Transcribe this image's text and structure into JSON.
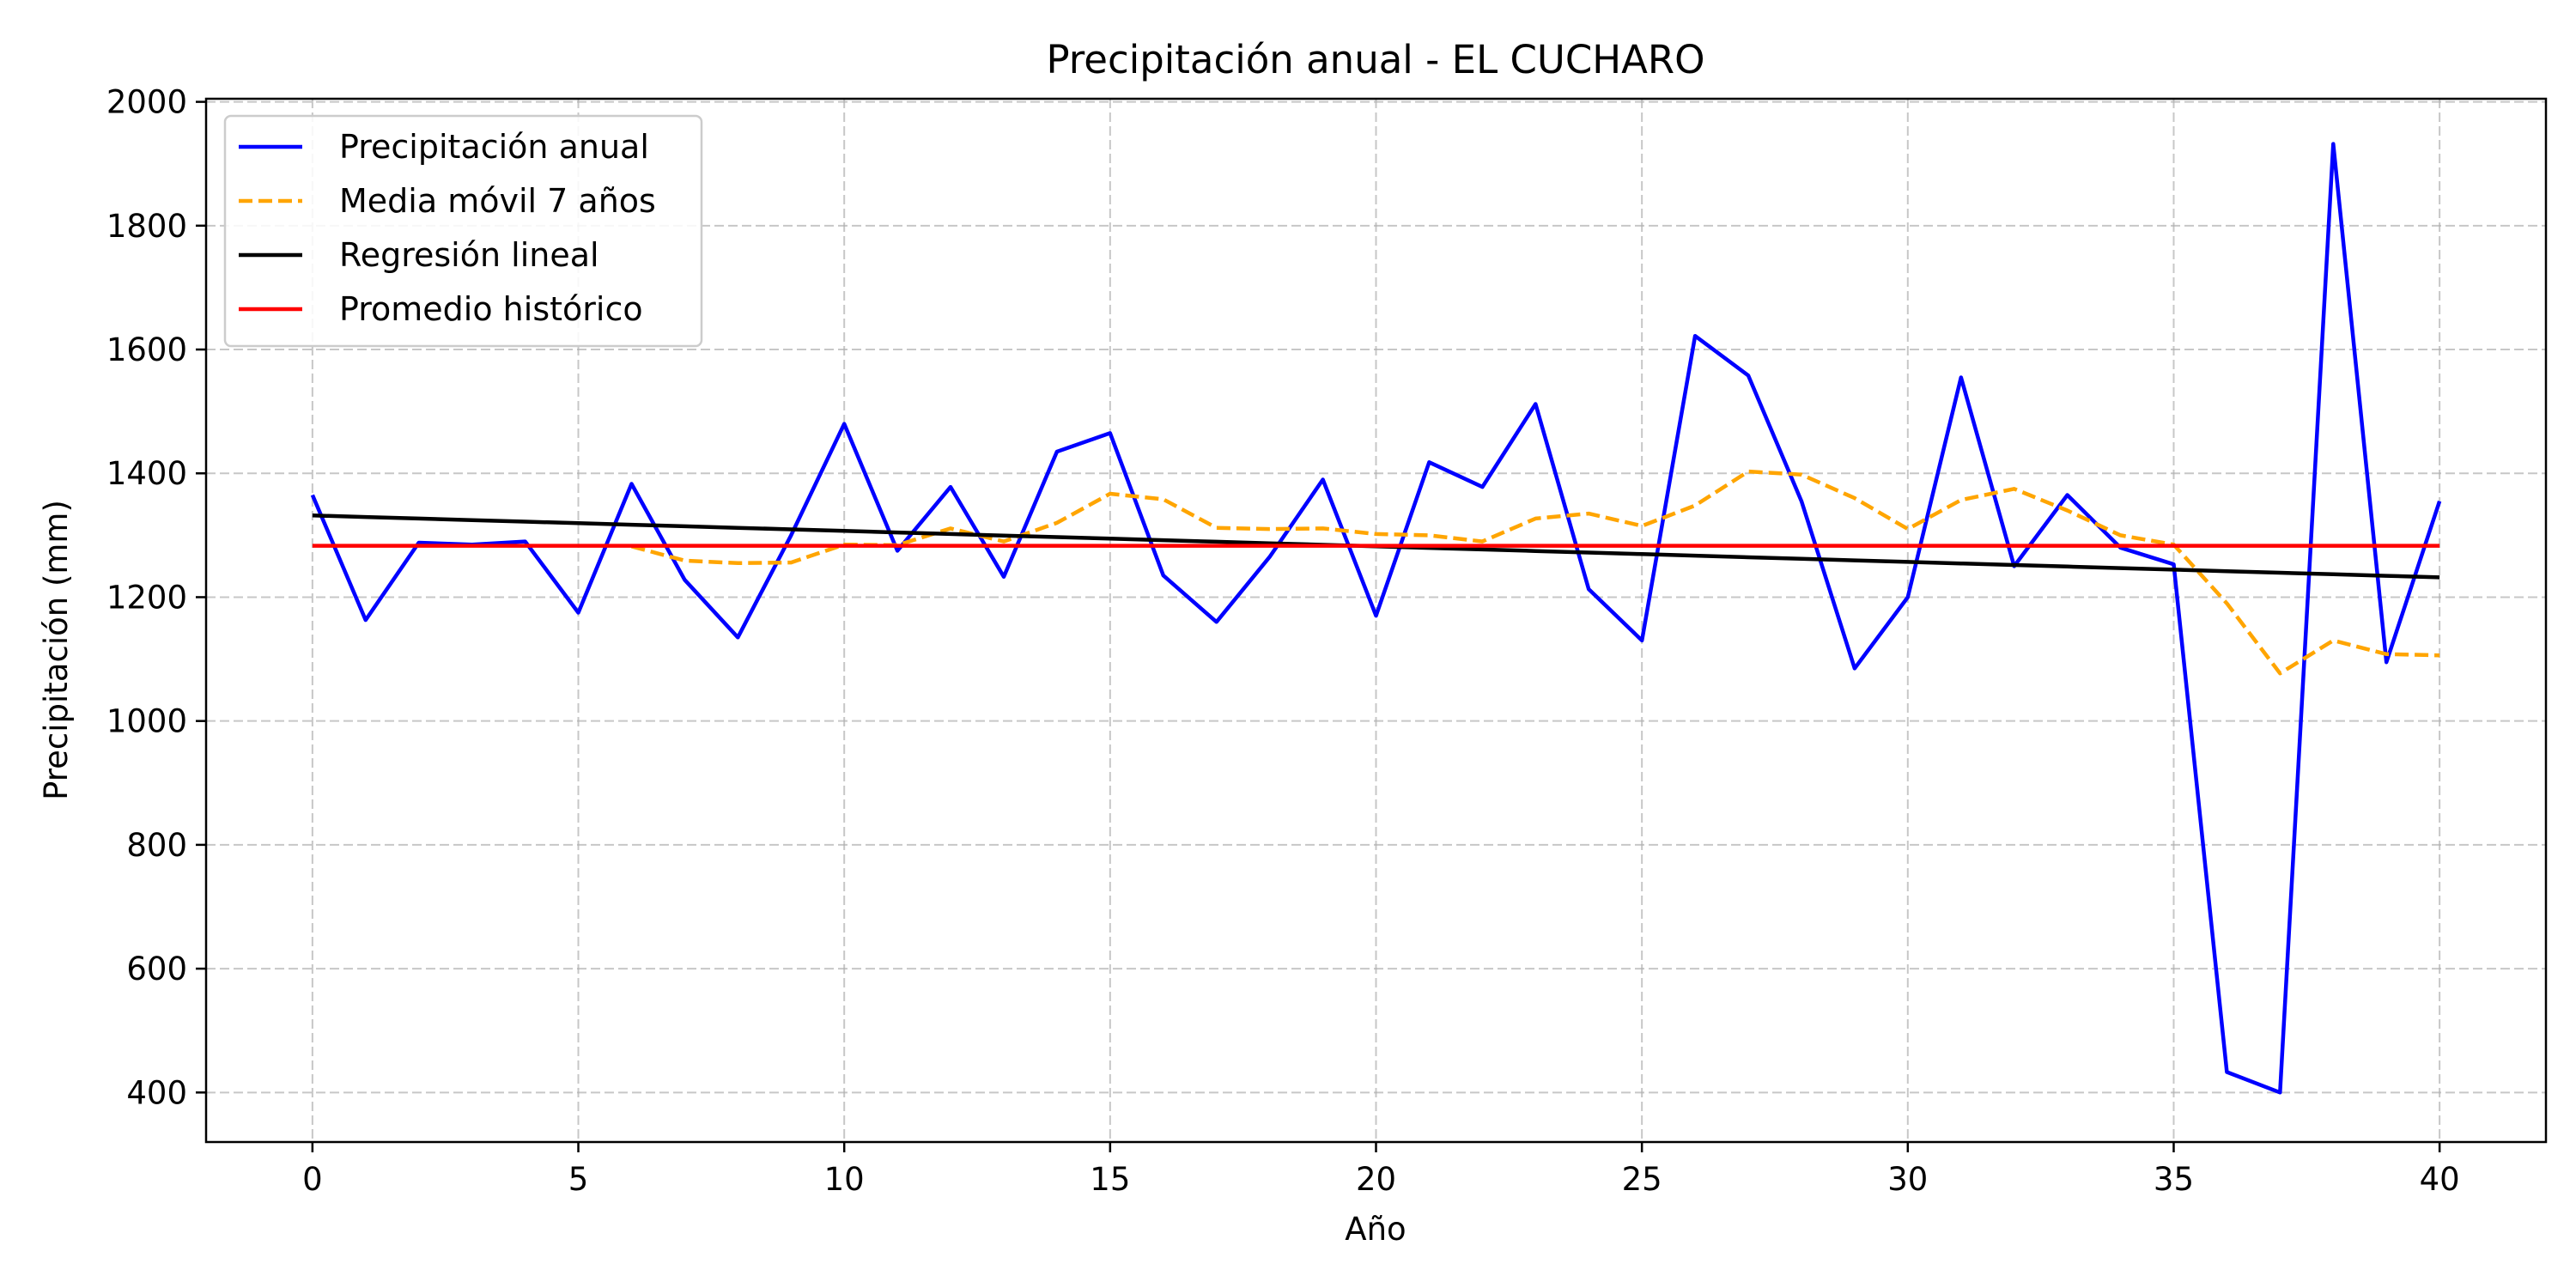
{
  "chart_data": {
    "type": "line",
    "title": "Precipitación anual - EL CUCHARO",
    "xlabel": "Año",
    "ylabel": "Precipitación (mm)",
    "xlim": [
      -2,
      42
    ],
    "ylim": [
      320,
      2005
    ],
    "xticks": [
      0,
      5,
      10,
      15,
      20,
      25,
      30,
      35,
      40
    ],
    "yticks": [
      400,
      600,
      800,
      1000,
      1200,
      1400,
      1600,
      1800,
      2000
    ],
    "grid": true,
    "legend_position": "top-left",
    "x": [
      0,
      1,
      2,
      3,
      4,
      5,
      6,
      7,
      8,
      9,
      10,
      11,
      12,
      13,
      14,
      15,
      16,
      17,
      18,
      19,
      20,
      21,
      22,
      23,
      24,
      25,
      26,
      27,
      28,
      29,
      30,
      31,
      32,
      33,
      34,
      35,
      36,
      37,
      38,
      39,
      40
    ],
    "series": [
      {
        "name": "Precipitación anual",
        "color": "#0000ff",
        "style": "solid",
        "values": [
          1365,
          1163,
          1288,
          1285,
          1290,
          1175,
          1383,
          1228,
          1135,
          1300,
          1480,
          1275,
          1378,
          1233,
          1435,
          1465,
          1235,
          1160,
          1265,
          1390,
          1170,
          1418,
          1378,
          1512,
          1213,
          1130,
          1622,
          1558,
          1355,
          1085,
          1200,
          1555,
          1250,
          1365,
          1280,
          1253,
          433,
          400,
          1932,
          1095,
          1355
        ]
      },
      {
        "name": "Media móvil 7 años",
        "color": "#ffa500",
        "style": "dashed",
        "values": [
          null,
          null,
          null,
          null,
          null,
          null,
          1282,
          1259,
          1255,
          1256,
          1285,
          1284,
          1311,
          1290,
          1320,
          1367,
          1358,
          1312,
          1310,
          1311,
          1302,
          1300,
          1290,
          1327,
          1335,
          1315,
          1348,
          1403,
          1398,
          1360,
          1310,
          1357,
          1375,
          1340,
          1300,
          1285,
          1190,
          1077,
          1130,
          1108,
          1106
        ]
      },
      {
        "name": "Regresión lineal",
        "color": "#000000",
        "style": "solid",
        "values": [
          1332,
          1329.5,
          1327,
          1324.5,
          1322,
          1319.5,
          1317,
          1314.5,
          1312,
          1309.5,
          1307,
          1304.5,
          1302,
          1299.5,
          1297,
          1294.5,
          1292,
          1289.5,
          1287,
          1284.5,
          1282,
          1279.5,
          1277,
          1274.5,
          1272,
          1269.5,
          1267,
          1264.5,
          1262,
          1259.5,
          1257,
          1254.5,
          1252,
          1249.5,
          1247,
          1244.5,
          1242,
          1239.5,
          1237,
          1234.5,
          1232
        ]
      },
      {
        "name": "Promedio histórico",
        "color": "#ff0000",
        "style": "solid",
        "values": [
          1283,
          1283,
          1283,
          1283,
          1283,
          1283,
          1283,
          1283,
          1283,
          1283,
          1283,
          1283,
          1283,
          1283,
          1283,
          1283,
          1283,
          1283,
          1283,
          1283,
          1283,
          1283,
          1283,
          1283,
          1283,
          1283,
          1283,
          1283,
          1283,
          1283,
          1283,
          1283,
          1283,
          1283,
          1283,
          1283,
          1283,
          1283,
          1283,
          1283,
          1283
        ]
      }
    ]
  }
}
